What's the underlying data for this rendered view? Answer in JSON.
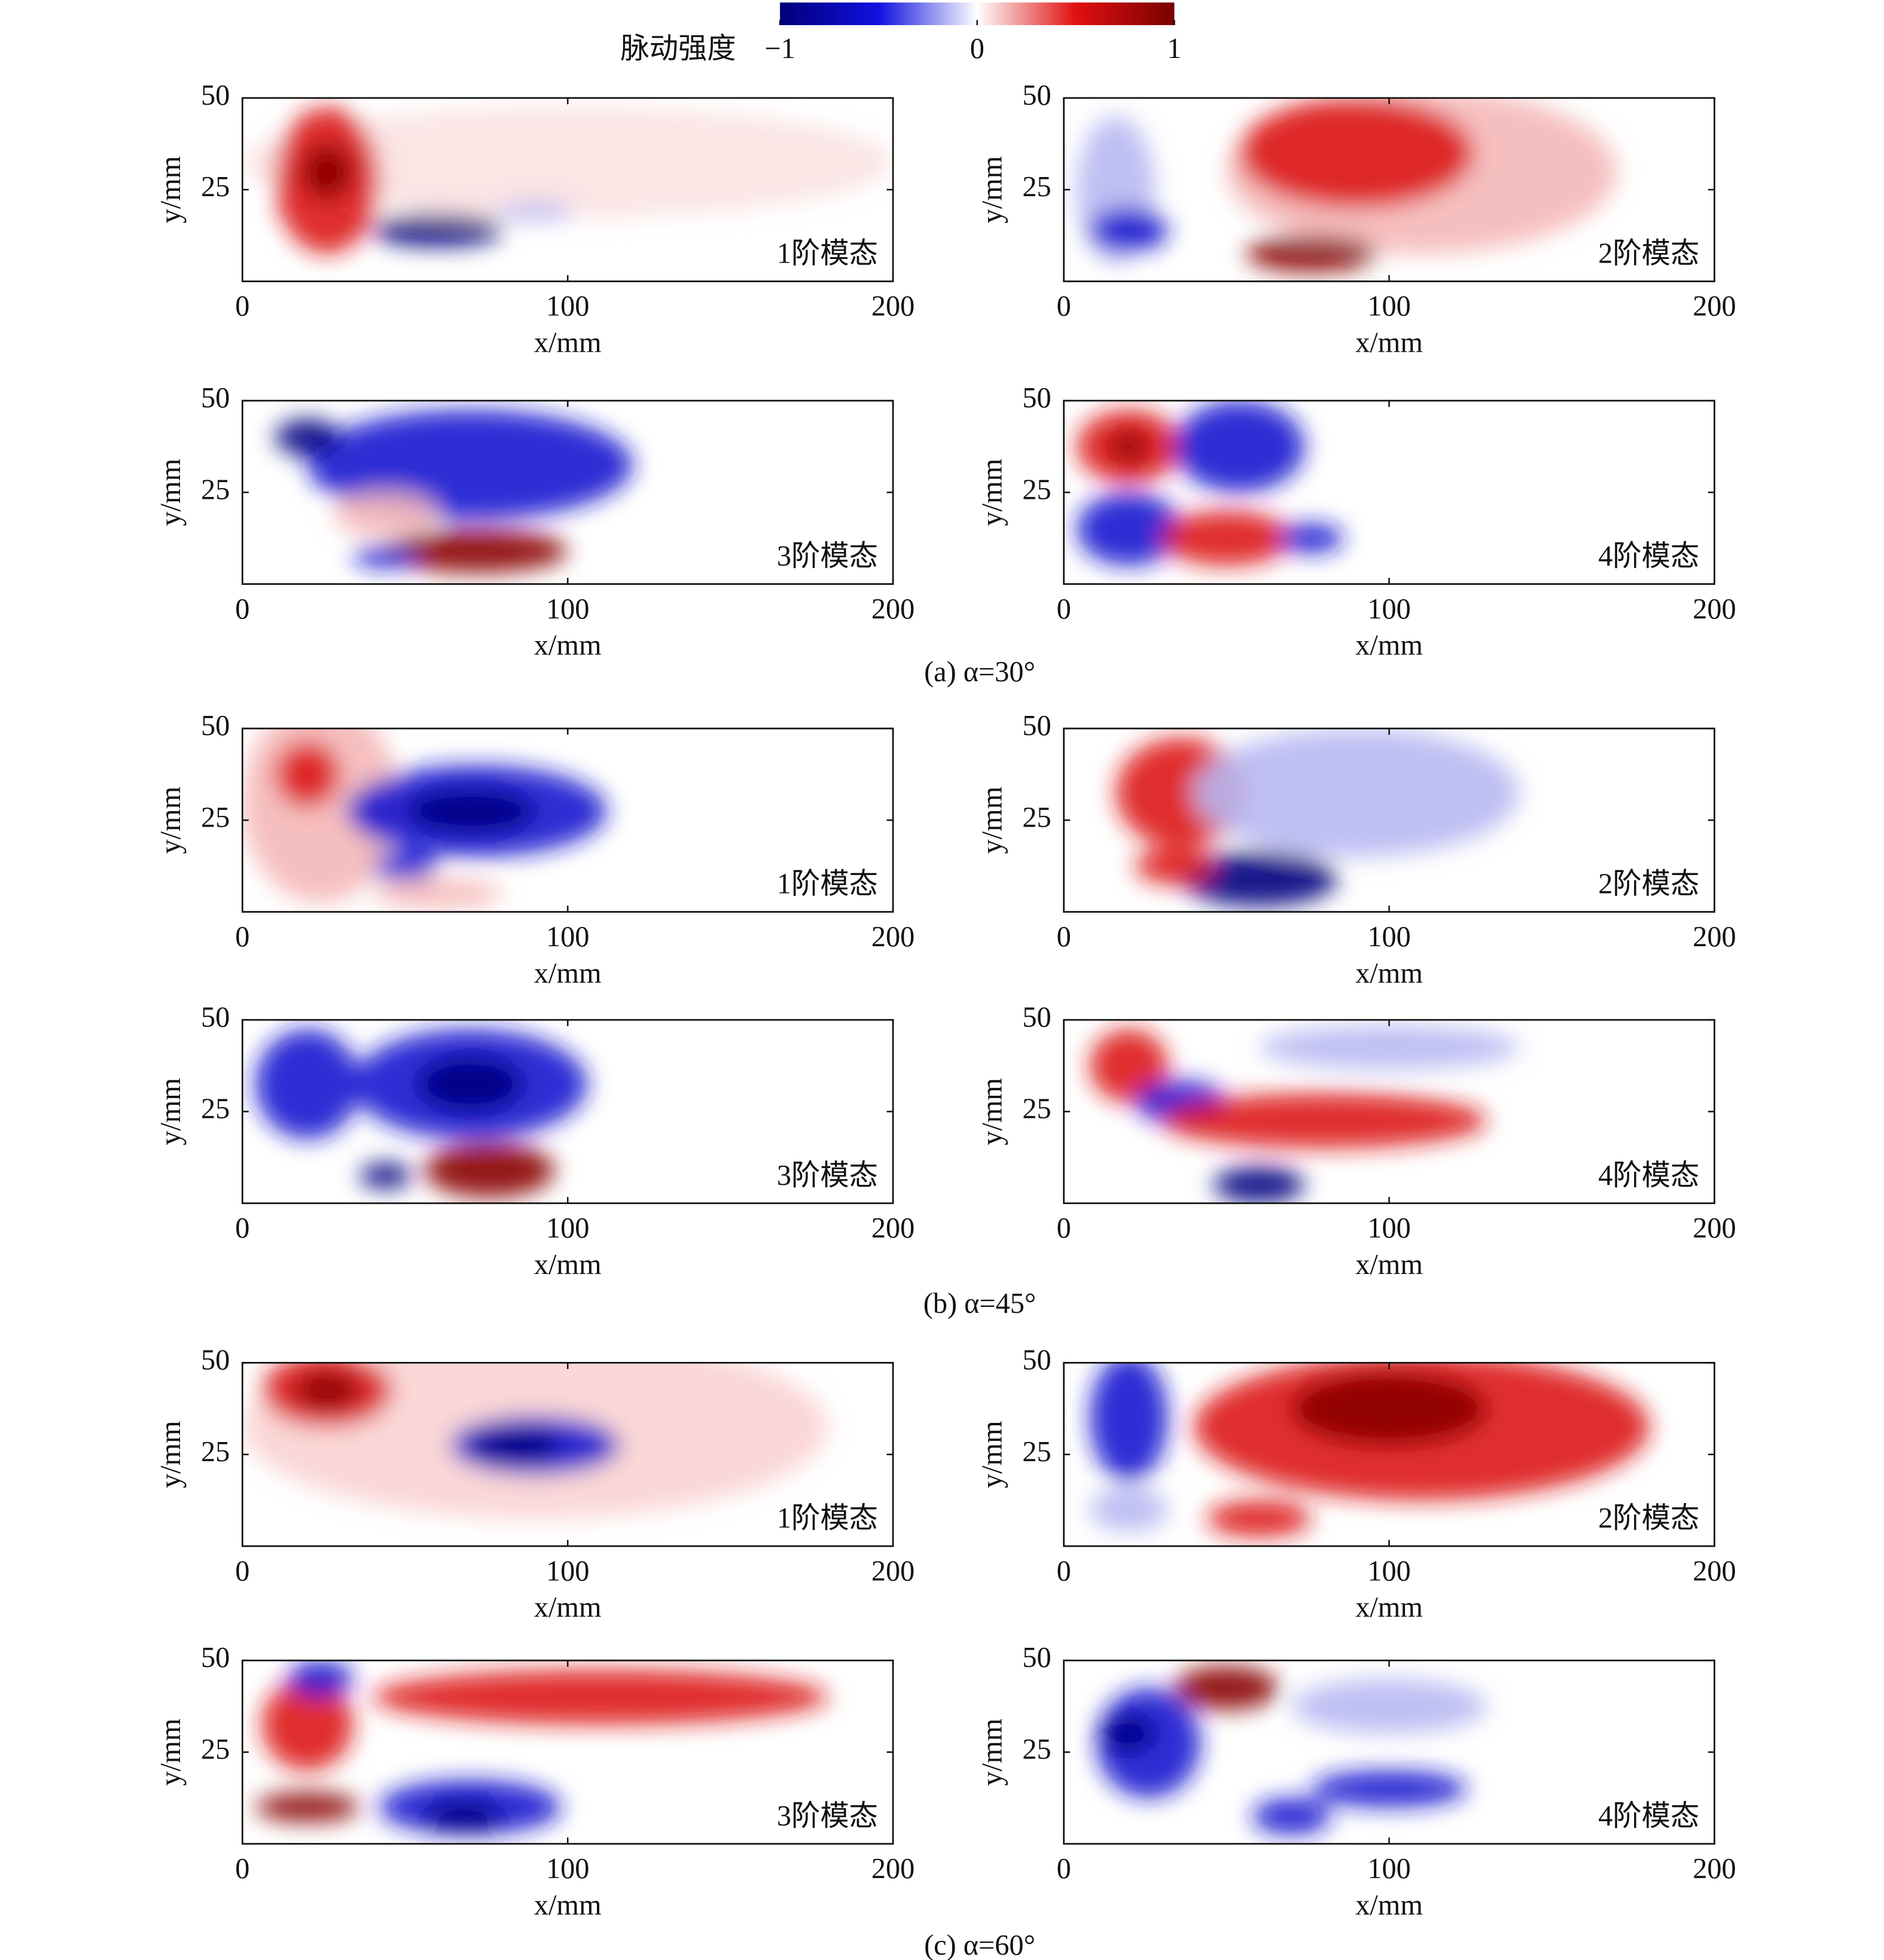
{
  "colorbar": {
    "label": "脉动强度",
    "clim": [
      -1,
      1
    ],
    "ticks": [
      {
        "value": -1,
        "label": "−1"
      },
      0,
      1
    ]
  },
  "captions": [
    "(a) α=30°",
    "(b) α=45°",
    "(c) α=60°"
  ],
  "chart_data": [
    {
      "type": "heatmap",
      "title": "1阶模态",
      "xlabel": "x/mm",
      "ylabel": "y/mm",
      "xlim": [
        0,
        200
      ],
      "xticks": [
        0,
        100,
        200
      ],
      "ylim": [
        0,
        50
      ],
      "yticks": [
        25,
        50
      ]
    },
    {
      "type": "heatmap",
      "title": "2阶模态",
      "xlabel": "x/mm",
      "ylabel": "y/mm",
      "xlim": [
        0,
        200
      ],
      "xticks": [
        0,
        100,
        200
      ],
      "ylim": [
        0,
        50
      ],
      "yticks": [
        25,
        50
      ]
    },
    {
      "type": "heatmap",
      "title": "3阶模态",
      "xlabel": "x/mm",
      "ylabel": "y/mm",
      "xlim": [
        0,
        200
      ],
      "xticks": [
        0,
        100,
        200
      ],
      "ylim": [
        0,
        50
      ],
      "yticks": [
        25,
        50
      ]
    },
    {
      "type": "heatmap",
      "title": "4阶模态",
      "xlabel": "x/mm",
      "ylabel": "y/mm",
      "xlim": [
        0,
        200
      ],
      "xticks": [
        0,
        100,
        200
      ],
      "ylim": [
        0,
        50
      ],
      "yticks": [
        25,
        50
      ]
    },
    {
      "type": "heatmap",
      "title": "1阶模态",
      "xlabel": "x/mm",
      "ylabel": "y/mm",
      "xlim": [
        0,
        200
      ],
      "xticks": [
        0,
        100,
        200
      ],
      "ylim": [
        0,
        50
      ],
      "yticks": [
        25,
        50
      ]
    },
    {
      "type": "heatmap",
      "title": "2阶模态",
      "xlabel": "x/mm",
      "ylabel": "y/mm",
      "xlim": [
        0,
        200
      ],
      "xticks": [
        0,
        100,
        200
      ],
      "ylim": [
        0,
        50
      ],
      "yticks": [
        25,
        50
      ]
    },
    {
      "type": "heatmap",
      "title": "3阶模态",
      "xlabel": "x/mm",
      "ylabel": "y/mm",
      "xlim": [
        0,
        200
      ],
      "xticks": [
        0,
        100,
        200
      ],
      "ylim": [
        0,
        50
      ],
      "yticks": [
        25,
        50
      ]
    },
    {
      "type": "heatmap",
      "title": "4阶模态",
      "xlabel": "x/mm",
      "ylabel": "y/mm",
      "xlim": [
        0,
        200
      ],
      "xticks": [
        0,
        100,
        200
      ],
      "ylim": [
        0,
        50
      ],
      "yticks": [
        25,
        50
      ]
    },
    {
      "type": "heatmap",
      "title": "1阶模态",
      "xlabel": "x/mm",
      "ylabel": "y/mm",
      "xlim": [
        0,
        200
      ],
      "xticks": [
        0,
        100,
        200
      ],
      "ylim": [
        0,
        50
      ],
      "yticks": [
        25,
        50
      ]
    },
    {
      "type": "heatmap",
      "title": "2阶模态",
      "xlabel": "x/mm",
      "ylabel": "y/mm",
      "xlim": [
        0,
        200
      ],
      "xticks": [
        0,
        100,
        200
      ],
      "ylim": [
        0,
        50
      ],
      "yticks": [
        25,
        50
      ]
    },
    {
      "type": "heatmap",
      "title": "3阶模态",
      "xlabel": "x/mm",
      "ylabel": "y/mm",
      "xlim": [
        0,
        200
      ],
      "xticks": [
        0,
        100,
        200
      ],
      "ylim": [
        0,
        50
      ],
      "yticks": [
        25,
        50
      ]
    },
    {
      "type": "heatmap",
      "title": "4阶模态",
      "xlabel": "x/mm",
      "ylabel": "y/mm",
      "xlim": [
        0,
        200
      ],
      "xticks": [
        0,
        100,
        200
      ],
      "ylim": [
        0,
        50
      ],
      "yticks": [
        25,
        50
      ]
    }
  ]
}
